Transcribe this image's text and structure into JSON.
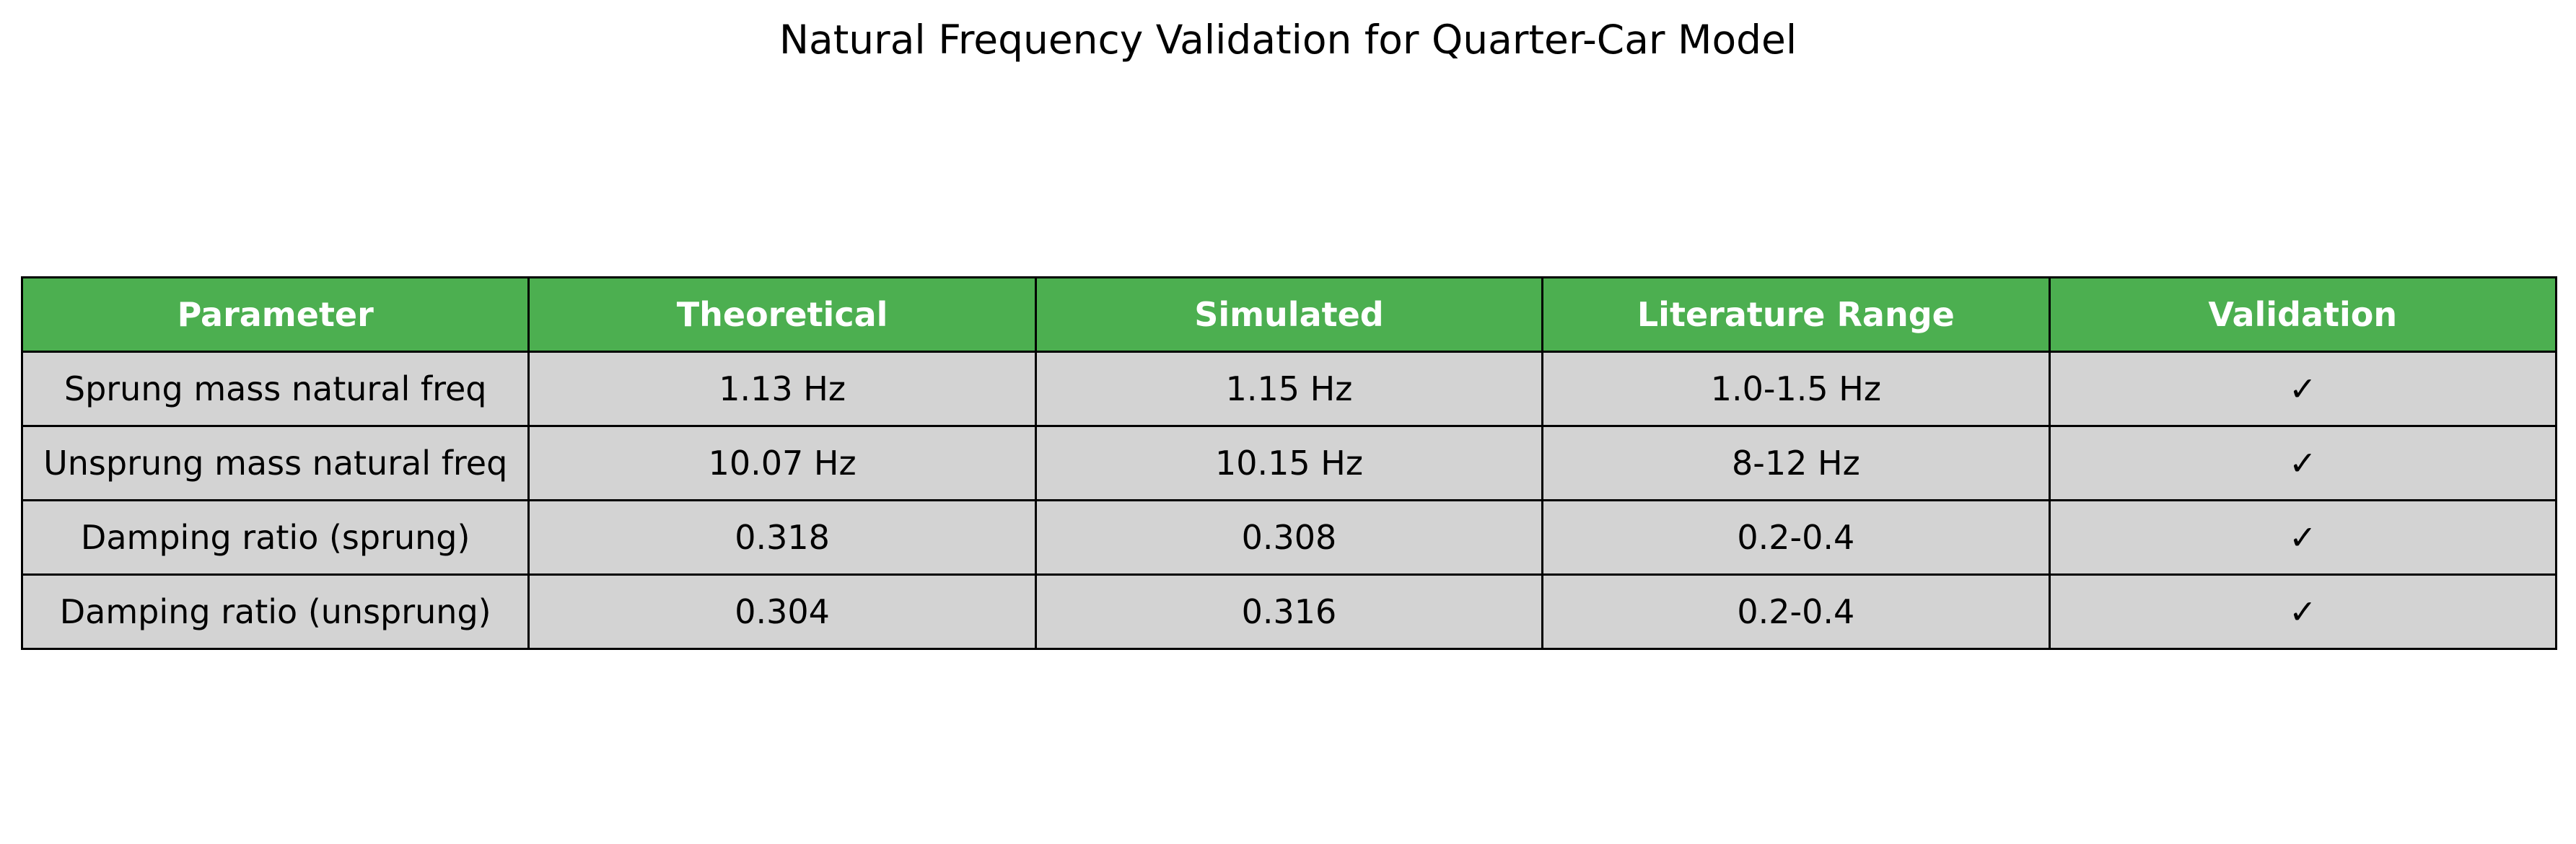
{
  "chart_data": {
    "type": "table",
    "title": "Natural Frequency Validation for Quarter-Car Model",
    "columns": [
      "Parameter",
      "Theoretical",
      "Simulated",
      "Literature Range",
      "Validation"
    ],
    "rows": [
      [
        "Sprung mass natural freq",
        "1.13 Hz",
        "1.15 Hz",
        "1.0-1.5 Hz",
        "✓"
      ],
      [
        "Unsprung mass natural freq",
        "10.07 Hz",
        "10.15 Hz",
        "8-12 Hz",
        "✓"
      ],
      [
        "Damping ratio (sprung)",
        "0.318",
        "0.308",
        "0.2-0.4",
        "✓"
      ],
      [
        "Damping ratio (unsprung)",
        "0.304",
        "0.316",
        "0.2-0.4",
        "✓"
      ]
    ]
  },
  "colors": {
    "header_background": "#4caf50",
    "header_text": "#ffffff",
    "cell_background": "#d3d3d3",
    "border": "#000000"
  }
}
